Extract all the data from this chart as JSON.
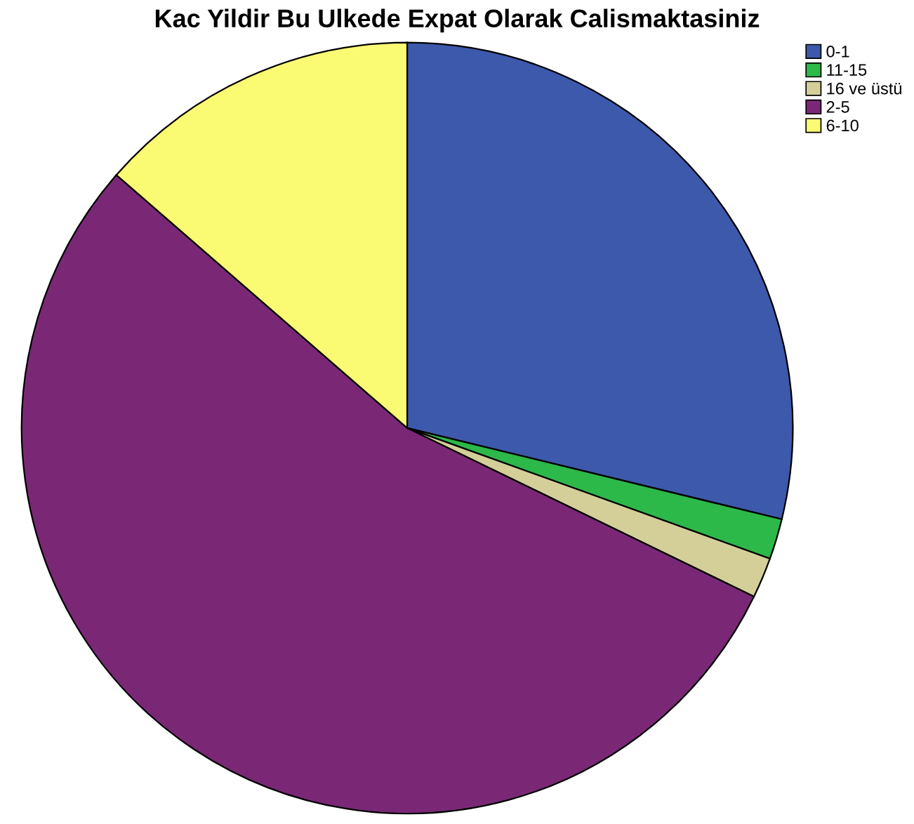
{
  "chart_data": {
    "type": "pie",
    "title": "Kac Yildir Bu Ulkede Expat Olarak Calismaktasiniz",
    "categories": [
      "0-1",
      "11-15",
      "16 ve üstü",
      "2-5",
      "6-10"
    ],
    "values": [
      28.8,
      1.7,
      1.7,
      54.2,
      13.6
    ],
    "colors": [
      "#3d59ab",
      "#2db84a",
      "#d4cf98",
      "#7a2876",
      "#fbfa73"
    ],
    "legend": "top right"
  }
}
